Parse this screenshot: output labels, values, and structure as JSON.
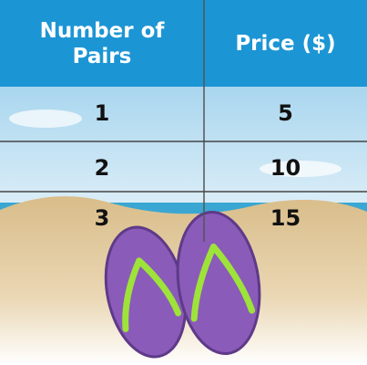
{
  "table": {
    "header": [
      "Number of Pairs",
      "Price ($)"
    ],
    "rows": [
      [
        1,
        5
      ],
      [
        2,
        10
      ],
      [
        3,
        15
      ]
    ]
  }
}
